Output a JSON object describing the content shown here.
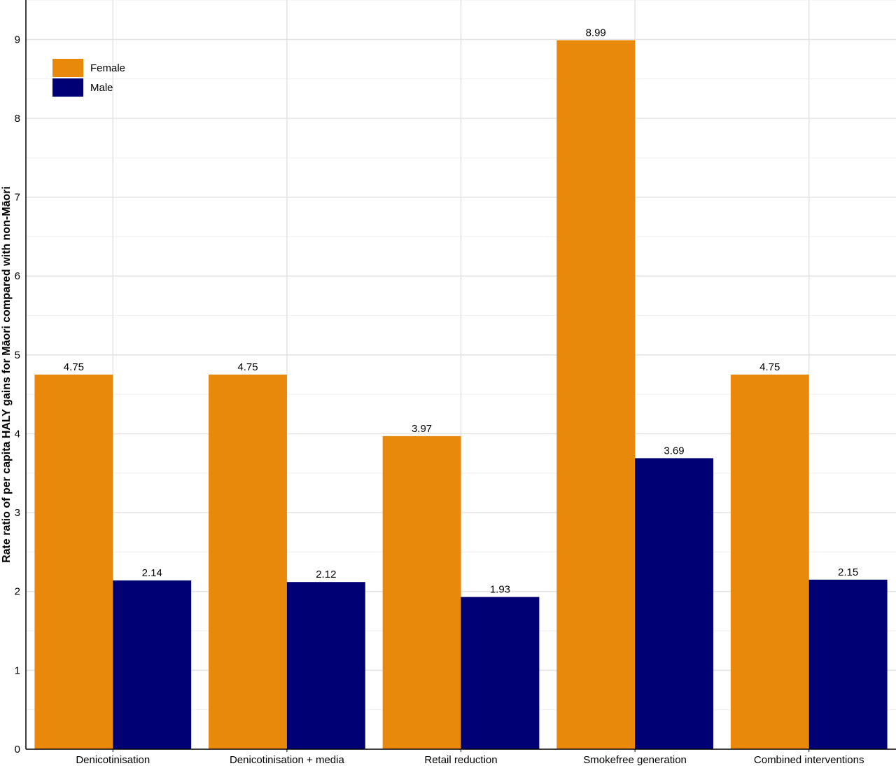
{
  "chart_data": {
    "type": "bar",
    "title": "",
    "xlabel": "",
    "ylabel": "Rate ratio of per capita HALY gains for Māori compared with non-Māori",
    "categories": [
      "Denicotinisation",
      "Denicotinisation + media",
      "Retail reduction",
      "Smokefree generation",
      "Combined interventions"
    ],
    "series": [
      {
        "name": "Female",
        "color": "#e8890c",
        "values": [
          4.75,
          4.75,
          3.97,
          8.99,
          4.75
        ]
      },
      {
        "name": "Male",
        "color": "#000075",
        "values": [
          2.14,
          2.12,
          1.93,
          3.69,
          2.15
        ]
      }
    ],
    "ylim": [
      0,
      9.5
    ],
    "yticks": [
      0,
      1,
      2,
      3,
      4,
      5,
      6,
      7,
      8,
      9
    ],
    "grid": true,
    "legend": "top-left"
  }
}
